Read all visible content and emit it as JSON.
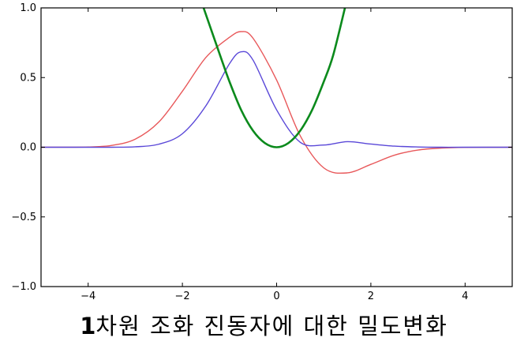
{
  "chart_data": {
    "type": "line",
    "title": "",
    "xlabel": "",
    "ylabel": "",
    "xlim": [
      -5,
      5
    ],
    "ylim": [
      -1.0,
      1.0
    ],
    "x_ticks": [
      -4,
      -2,
      0,
      2,
      4
    ],
    "x_tick_labels": [
      "−4",
      "−2",
      "0",
      "2",
      "4"
    ],
    "y_ticks": [
      -1.0,
      -0.5,
      0.0,
      0.5,
      1.0
    ],
    "y_tick_labels": [
      "−1.0",
      "−0.5",
      "0.0",
      "0.5",
      "1.0"
    ],
    "grid": false,
    "legend": "none",
    "series": [
      {
        "color": "#e8585a",
        "x": [
          -5,
          -4,
          -3.5,
          -3,
          -2.5,
          -2,
          -1.5,
          -1,
          -0.75,
          -0.5,
          0,
          0.5,
          1,
          1.5,
          2,
          2.5,
          3,
          3.5,
          4,
          5
        ],
        "values": [
          0.0,
          0.002,
          0.013,
          0.058,
          0.181,
          0.402,
          0.645,
          0.789,
          0.83,
          0.782,
          0.482,
          0.083,
          -0.148,
          -0.184,
          -0.123,
          -0.057,
          -0.02,
          -0.006,
          -0.001,
          0.0
        ]
      },
      {
        "color": "#5a48d8",
        "x": [
          -5,
          -4,
          -3.5,
          -3,
          -2.5,
          -2,
          -1.5,
          -1,
          -0.75,
          -0.5,
          0,
          0.5,
          1,
          1.5,
          2,
          2.5,
          3,
          3.5,
          4,
          5
        ],
        "values": [
          0.0,
          0.0,
          0.0,
          0.003,
          0.022,
          0.097,
          0.298,
          0.6,
          0.685,
          0.625,
          0.268,
          0.036,
          0.016,
          0.04,
          0.023,
          0.008,
          0.002,
          0.0,
          0.0,
          0.0
        ]
      },
      {
        "color": "#0b8a1c",
        "x": [
          -1.55,
          -1.2,
          -1,
          -0.75,
          -0.5,
          -0.25,
          0,
          0.25,
          0.5,
          0.75,
          1,
          1.2,
          1.45
        ],
        "values": [
          1.0,
          0.66,
          0.47,
          0.265,
          0.118,
          0.03,
          0.0,
          0.03,
          0.118,
          0.265,
          0.47,
          0.66,
          1.0
        ]
      }
    ]
  },
  "caption": {
    "number": "1",
    "text": "차원 조화 진동자에 대한 밀도변화"
  },
  "colors": {
    "axis": "#000000",
    "background": "#ffffff"
  }
}
